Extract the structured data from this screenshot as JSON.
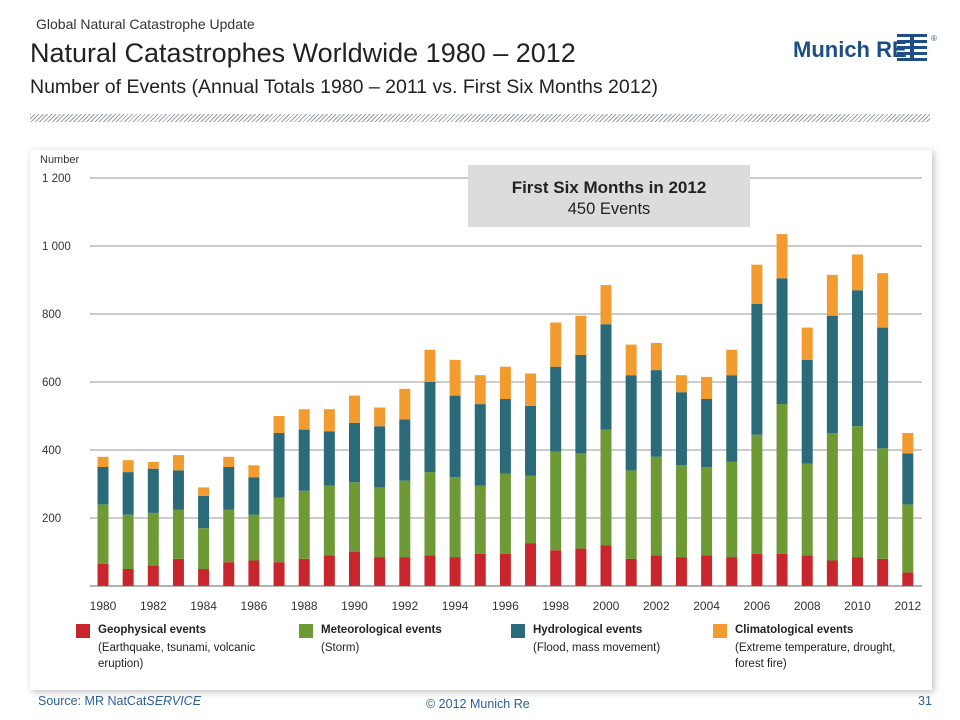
{
  "header": {
    "kicker": "Global Natural Catastrophe Update",
    "title": "Natural Catastrophes Worldwide 1980 – 2012",
    "subtitle": "Number of Events (Annual Totals 1980 – 2011 vs. First Six Months 2012)"
  },
  "logo": {
    "text": "Munich RE",
    "registered": "®",
    "color": "#1d4f86"
  },
  "callout": {
    "title": "First Six Months in 2012",
    "value": "450 Events"
  },
  "legend": [
    {
      "title": "Geophysical events",
      "desc": "(Earthquake, tsunami, volcanic eruption)",
      "color": "#c8252c"
    },
    {
      "title": "Meteorological events",
      "desc": "(Storm)",
      "color": "#6e9a35"
    },
    {
      "title": "Hydrological events",
      "desc": "(Flood, mass movement)",
      "color": "#2b6a78"
    },
    {
      "title": "Climatological events",
      "desc": "(Extreme temperature, drought, forest fire)",
      "color": "#f29b2e"
    }
  ],
  "footer": {
    "source_prefix": "Source: MR NatCat",
    "source_italic": "SERVICE",
    "copyright": "© 2012 Munich Re",
    "page": "31"
  },
  "chart_data": {
    "type": "bar",
    "stacked": true,
    "ylabel": "Number",
    "ylim": [
      0,
      1200
    ],
    "yticks": [
      200,
      400,
      600,
      800,
      1000,
      1200
    ],
    "ytick_labels": [
      "200",
      "400",
      "600",
      "800",
      "1 000",
      "1 200"
    ],
    "grid": true,
    "categories": [
      "1980",
      "1981",
      "1982",
      "1983",
      "1984",
      "1985",
      "1986",
      "1987",
      "1988",
      "1989",
      "1990",
      "1991",
      "1992",
      "1993",
      "1994",
      "1995",
      "1996",
      "1997",
      "1998",
      "1999",
      "2000",
      "2001",
      "2002",
      "2003",
      "2004",
      "2005",
      "2006",
      "2007",
      "2008",
      "2009",
      "2010",
      "2011",
      "2012"
    ],
    "xtick_labels": [
      "1980",
      "1982",
      "1984",
      "1986",
      "1988",
      "1990",
      "1992",
      "1994",
      "1996",
      "1998",
      "2000",
      "2002",
      "2004",
      "2006",
      "2008",
      "2010",
      "2012"
    ],
    "series": [
      {
        "name": "Geophysical events",
        "color": "#c8252c",
        "values": [
          65,
          50,
          60,
          80,
          50,
          70,
          75,
          70,
          80,
          90,
          100,
          85,
          85,
          90,
          85,
          95,
          95,
          125,
          105,
          110,
          120,
          80,
          90,
          85,
          90,
          85,
          95,
          95,
          90,
          75,
          85,
          80,
          40
        ]
      },
      {
        "name": "Meteorological events",
        "color": "#6e9a35",
        "values": [
          175,
          160,
          155,
          145,
          120,
          155,
          135,
          190,
          200,
          205,
          205,
          205,
          225,
          245,
          235,
          200,
          235,
          200,
          290,
          280,
          340,
          260,
          290,
          270,
          260,
          280,
          350,
          440,
          270,
          375,
          385,
          325,
          200
        ]
      },
      {
        "name": "Hydrological events",
        "color": "#2b6a78",
        "values": [
          110,
          125,
          130,
          115,
          95,
          125,
          110,
          190,
          180,
          160,
          175,
          180,
          180,
          265,
          240,
          240,
          220,
          205,
          250,
          290,
          310,
          280,
          255,
          215,
          200,
          255,
          385,
          370,
          305,
          345,
          400,
          355,
          150
        ]
      },
      {
        "name": "Climatological events",
        "color": "#f29b2e",
        "values": [
          30,
          35,
          20,
          45,
          25,
          30,
          35,
          50,
          60,
          65,
          80,
          55,
          90,
          95,
          105,
          85,
          95,
          95,
          130,
          115,
          115,
          90,
          80,
          50,
          65,
          75,
          115,
          130,
          95,
          120,
          105,
          160,
          60
        ]
      }
    ]
  }
}
